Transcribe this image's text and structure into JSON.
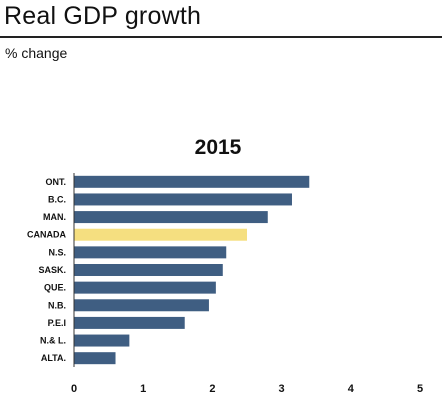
{
  "header": {
    "title": "Real GDP growth",
    "subtitle": "% change"
  },
  "chart_data": {
    "type": "bar",
    "orientation": "horizontal",
    "title": "2015",
    "xlabel": "",
    "ylabel": "",
    "categories": [
      "ONT.",
      "B.C.",
      "MAN.",
      "CANADA",
      "N.S.",
      "SASK.",
      "QUE.",
      "N.B.",
      "P.E.I",
      "N.& L.",
      "ALTA."
    ],
    "values": [
      3.4,
      3.15,
      2.8,
      2.5,
      2.2,
      2.15,
      2.05,
      1.95,
      1.6,
      0.8,
      0.6
    ],
    "highlight": "CANADA",
    "xlim": [
      0,
      5
    ],
    "xticks": [
      0,
      1,
      2,
      3,
      4,
      5
    ],
    "grid": false,
    "colors": {
      "bar": "#3f5e82",
      "bar_highlight": "#f5df80",
      "axis": "#333333"
    }
  }
}
